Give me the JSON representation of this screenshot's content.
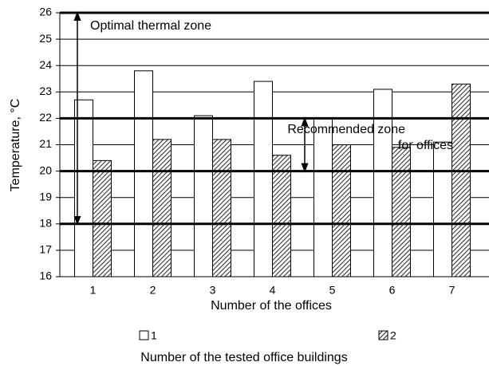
{
  "chart_data": {
    "type": "bar",
    "categories": [
      "1",
      "2",
      "3",
      "4",
      "5",
      "6",
      "7"
    ],
    "series": [
      {
        "name": "1",
        "color": "#ffffff",
        "values": [
          22.7,
          23.8,
          22.1,
          23.4,
          22.0,
          23.1,
          21.1
        ]
      },
      {
        "name": "2",
        "color": "#555555",
        "hatch": true,
        "values": [
          20.4,
          21.2,
          21.2,
          20.6,
          21.0,
          20.9,
          23.3
        ]
      }
    ],
    "ylim": [
      16,
      26
    ],
    "yticks": [
      16,
      17,
      18,
      19,
      20,
      21,
      22,
      23,
      24,
      25,
      26
    ],
    "grid": true,
    "ylabel": "Temperature, °C",
    "xlabel": "Number of the offices",
    "legend_title": "Number of the tested office buildings",
    "zones": [
      {
        "label": [
          "Optimal thermal zone"
        ],
        "range": [
          18,
          26
        ]
      },
      {
        "label": [
          "Recommended zone",
          "for offices"
        ],
        "range": [
          20,
          22
        ]
      }
    ]
  }
}
